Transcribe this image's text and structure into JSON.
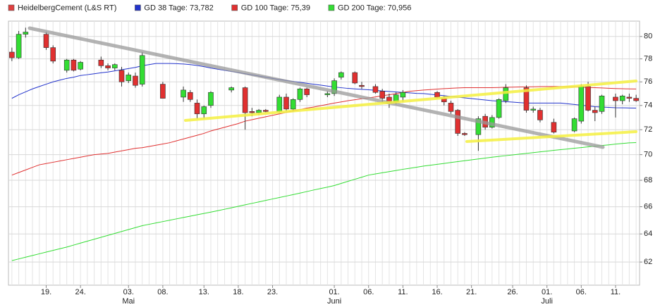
{
  "chart_data": {
    "type": "candlestick",
    "log": true,
    "grid": true,
    "legend": "top-left",
    "ylim": [
      60.4,
      81.4
    ],
    "yticks": [
      62,
      64,
      66,
      68,
      70,
      72,
      74,
      76,
      78,
      80
    ],
    "categories": [
      null,
      null,
      null,
      null,
      null,
      "19.",
      null,
      null,
      null,
      null,
      "24.",
      null,
      null,
      null,
      null,
      null,
      null,
      "03.",
      null,
      null,
      null,
      null,
      "08.",
      null,
      null,
      null,
      null,
      null,
      "13.",
      null,
      null,
      null,
      null,
      "18.",
      null,
      null,
      null,
      null,
      "23.",
      null,
      null,
      null,
      null,
      null,
      null,
      null,
      null,
      "01.",
      null,
      null,
      null,
      null,
      "06.",
      null,
      null,
      null,
      null,
      "11.",
      null,
      null,
      null,
      null,
      "16.",
      null,
      null,
      null,
      null,
      "21.",
      null,
      null,
      null,
      null,
      null,
      "26.",
      null,
      null,
      null,
      null,
      "01.",
      null,
      null,
      null,
      null,
      "06.",
      null,
      null,
      null,
      null,
      "11.",
      null,
      null,
      null
    ],
    "months": [
      null,
      null,
      null,
      null,
      null,
      null,
      null,
      null,
      null,
      null,
      null,
      null,
      null,
      null,
      null,
      null,
      null,
      "Mai",
      null,
      null,
      null,
      null,
      null,
      null,
      null,
      null,
      null,
      null,
      null,
      null,
      null,
      null,
      null,
      null,
      null,
      null,
      null,
      null,
      null,
      null,
      null,
      null,
      null,
      null,
      null,
      null,
      null,
      "Juni",
      null,
      null,
      null,
      null,
      null,
      null,
      null,
      null,
      null,
      null,
      null,
      null,
      null,
      null,
      null,
      null,
      null,
      null,
      null,
      null,
      null,
      null,
      null,
      null,
      null,
      null,
      null,
      null,
      null,
      null,
      "Juli",
      null,
      null,
      null,
      null,
      null,
      null,
      null,
      null,
      null,
      null,
      null,
      null,
      null
    ],
    "series": [
      {
        "name": "HeidelbergCement (L&S RT)",
        "type": "candlestick",
        "color": "#e04040",
        "up_color": "#33dd33",
        "down_color": "#e03030",
        "open": [
          78.6,
          78.1,
          80.2,
          null,
          null,
          80.2,
          79.0,
          null,
          77.0,
          77.9,
          77.1,
          null,
          null,
          77.9,
          77.4,
          77.2,
          77.0,
          76.1,
          76.5,
          75.8,
          null,
          null,
          75.8,
          null,
          null,
          74.7,
          75.1,
          74.2,
          73.3,
          74.0,
          null,
          null,
          75.3,
          null,
          75.5,
          73.5,
          73.4,
          73.6,
          null,
          73.5,
          74.7,
          73.7,
          74.5,
          75.4,
          null,
          null,
          74.9,
          75.0,
          76.4,
          null,
          76.8,
          75.7,
          null,
          75.6,
          75.2,
          74.7,
          74.3,
          74.7,
          null,
          null,
          null,
          null,
          75.1,
          74.6,
          74.2,
          73.6,
          71.7,
          null,
          71.6,
          73.1,
          72.2,
          73.0,
          74.4,
          null,
          null,
          75.5,
          73.6,
          73.6,
          null,
          72.6,
          null,
          null,
          71.9,
          72.7,
          75.6,
          73.6,
          73.5,
          null,
          74.7,
          74.4,
          74.7,
          74.6
        ],
        "high": [
          79.0,
          80.5,
          80.8,
          null,
          null,
          80.4,
          79.2,
          null,
          78.0,
          78.0,
          77.8,
          null,
          null,
          78.2,
          77.6,
          77.6,
          77.3,
          76.8,
          76.8,
          78.6,
          null,
          null,
          76.0,
          null,
          null,
          75.6,
          75.3,
          74.5,
          74.0,
          75.2,
          null,
          null,
          75.6,
          null,
          75.6,
          73.8,
          73.7,
          73.7,
          null,
          74.9,
          75.0,
          74.6,
          75.5,
          75.5,
          null,
          null,
          75.2,
          76.3,
          76.9,
          null,
          76.9,
          76.0,
          null,
          75.8,
          75.4,
          75.0,
          75.1,
          75.3,
          null,
          null,
          null,
          null,
          75.2,
          74.8,
          74.4,
          73.7,
          71.8,
          null,
          73.1,
          73.3,
          73.2,
          74.6,
          75.8,
          null,
          null,
          75.7,
          73.9,
          73.8,
          null,
          72.9,
          null,
          null,
          73.0,
          75.8,
          76.0,
          73.9,
          74.9,
          null,
          75.0,
          74.9,
          75.0,
          74.9
        ],
        "low": [
          77.8,
          78.0,
          79.9,
          null,
          null,
          78.8,
          77.6,
          null,
          76.8,
          76.9,
          77.0,
          null,
          null,
          77.2,
          77.0,
          77.0,
          75.6,
          75.9,
          75.5,
          75.6,
          null,
          null,
          74.6,
          null,
          null,
          74.3,
          74.3,
          72.9,
          72.9,
          73.8,
          null,
          null,
          75.1,
          null,
          72.0,
          73.1,
          73.2,
          73.4,
          null,
          73.4,
          73.5,
          73.5,
          74.3,
          74.7,
          null,
          null,
          74.7,
          74.8,
          76.2,
          null,
          75.8,
          75.4,
          null,
          75.0,
          74.3,
          73.8,
          74.1,
          74.3,
          null,
          null,
          null,
          null,
          74.6,
          74.0,
          73.3,
          71.5,
          71.5,
          null,
          70.3,
          72.0,
          72.1,
          72.9,
          74.2,
          null,
          null,
          73.4,
          73.4,
          72.6,
          null,
          71.7,
          null,
          null,
          71.8,
          72.5,
          73.5,
          72.7,
          73.3,
          null,
          73.0,
          74.1,
          74.3,
          74.3
        ],
        "close": [
          78.1,
          80.2,
          80.4,
          null,
          null,
          79.0,
          77.8,
          null,
          77.9,
          77.0,
          77.7,
          null,
          null,
          77.4,
          77.2,
          77.5,
          76.0,
          76.6,
          75.7,
          78.3,
          null,
          null,
          74.6,
          null,
          null,
          75.3,
          74.5,
          73.3,
          73.9,
          75.1,
          null,
          null,
          75.5,
          null,
          73.4,
          73.4,
          73.6,
          73.5,
          null,
          74.7,
          73.7,
          74.5,
          75.4,
          74.9,
          null,
          null,
          75.0,
          76.1,
          76.8,
          null,
          75.9,
          75.6,
          null,
          75.1,
          74.6,
          74.2,
          74.9,
          75.1,
          null,
          null,
          null,
          null,
          74.7,
          74.3,
          73.5,
          71.7,
          71.6,
          null,
          72.9,
          72.2,
          73.0,
          74.5,
          75.5,
          null,
          null,
          73.6,
          73.7,
          72.8,
          null,
          71.8,
          null,
          null,
          72.9,
          75.6,
          73.6,
          73.4,
          74.8,
          null,
          74.4,
          74.8,
          74.6,
          74.4
        ]
      },
      {
        "name": "GD 38 Tage: 73,782",
        "type": "line",
        "color": "#2233cc",
        "values": [
          74.6,
          74.9,
          75.15,
          75.4,
          75.6,
          75.8,
          76.0,
          76.15,
          76.3,
          76.4,
          76.55,
          76.62,
          76.7,
          76.78,
          76.85,
          76.95,
          77.05,
          77.15,
          77.25,
          77.4,
          77.5,
          77.6,
          77.6,
          77.6,
          77.58,
          77.55,
          77.5,
          77.42,
          77.32,
          77.2,
          77.1,
          77.0,
          76.9,
          76.8,
          76.7,
          76.6,
          76.5,
          76.4,
          76.3,
          76.2,
          76.12,
          76.04,
          75.96,
          75.88,
          75.8,
          75.72,
          75.64,
          75.56,
          75.5,
          75.44,
          75.4,
          75.36,
          75.32,
          75.28,
          75.22,
          75.18,
          75.14,
          75.1,
          75.06,
          75.02,
          75.0,
          74.94,
          74.88,
          74.82,
          74.76,
          74.7,
          74.64,
          74.58,
          74.52,
          74.46,
          74.4,
          74.36,
          74.32,
          74.28,
          74.24,
          74.2,
          74.2,
          74.2,
          74.2,
          74.2,
          74.2,
          74.14,
          74.08,
          74.02,
          73.96,
          73.9,
          73.87,
          73.84,
          73.81,
          73.8,
          73.79,
          73.78
        ]
      },
      {
        "name": "GD 100 Tage: 75,39",
        "type": "line",
        "color": "#e03030",
        "values": [
          68.4,
          68.6,
          68.8,
          69.0,
          69.2,
          69.3,
          69.4,
          69.5,
          69.6,
          69.7,
          69.8,
          69.9,
          70.0,
          70.05,
          70.1,
          70.2,
          70.3,
          70.4,
          70.5,
          70.55,
          70.65,
          70.75,
          70.85,
          70.95,
          71.1,
          71.25,
          71.4,
          71.55,
          71.7,
          71.9,
          72.05,
          72.2,
          72.35,
          72.5,
          72.7,
          72.82,
          72.94,
          73.06,
          73.18,
          73.3,
          73.42,
          73.54,
          73.66,
          73.78,
          73.87,
          73.98,
          74.09,
          74.2,
          74.3,
          74.4,
          74.48,
          74.56,
          74.64,
          74.72,
          74.82,
          74.9,
          75.0,
          75.1,
          75.2,
          75.25,
          75.3,
          75.34,
          75.38,
          75.42,
          75.45,
          75.48,
          75.5,
          75.5,
          75.5,
          75.5,
          75.5,
          75.52,
          75.54,
          75.55,
          75.56,
          75.57,
          75.58,
          75.59,
          75.6,
          75.6,
          75.6,
          75.58,
          75.56,
          75.54,
          75.52,
          75.5,
          75.48,
          75.45,
          75.43,
          75.41,
          75.4,
          75.39
        ]
      },
      {
        "name": "GD 200 Tage: 70,956",
        "type": "line",
        "color": "#33dd33",
        "values": [
          62.1,
          62.22,
          62.34,
          62.46,
          62.58,
          62.7,
          62.82,
          62.94,
          63.06,
          63.2,
          63.34,
          63.48,
          63.62,
          63.76,
          63.9,
          64.04,
          64.18,
          64.32,
          64.46,
          64.6,
          64.7,
          64.8,
          64.9,
          65.0,
          65.1,
          65.2,
          65.3,
          65.4,
          65.5,
          65.6,
          65.7,
          65.81,
          65.92,
          66.03,
          66.14,
          66.25,
          66.36,
          66.47,
          66.58,
          66.69,
          66.8,
          66.91,
          67.02,
          67.14,
          67.26,
          67.37,
          67.48,
          67.6,
          67.76,
          67.92,
          68.08,
          68.24,
          68.4,
          68.49,
          68.58,
          68.67,
          68.76,
          68.85,
          68.93,
          69.01,
          69.1,
          69.17,
          69.24,
          69.31,
          69.38,
          69.45,
          69.52,
          69.59,
          69.66,
          69.73,
          69.8,
          69.86,
          69.92,
          69.98,
          70.04,
          70.1,
          70.16,
          70.22,
          70.28,
          70.34,
          70.4,
          70.45,
          70.51,
          70.56,
          70.62,
          70.67,
          70.73,
          70.78,
          70.84,
          70.89,
          70.94,
          70.96
        ]
      }
    ]
  }
}
